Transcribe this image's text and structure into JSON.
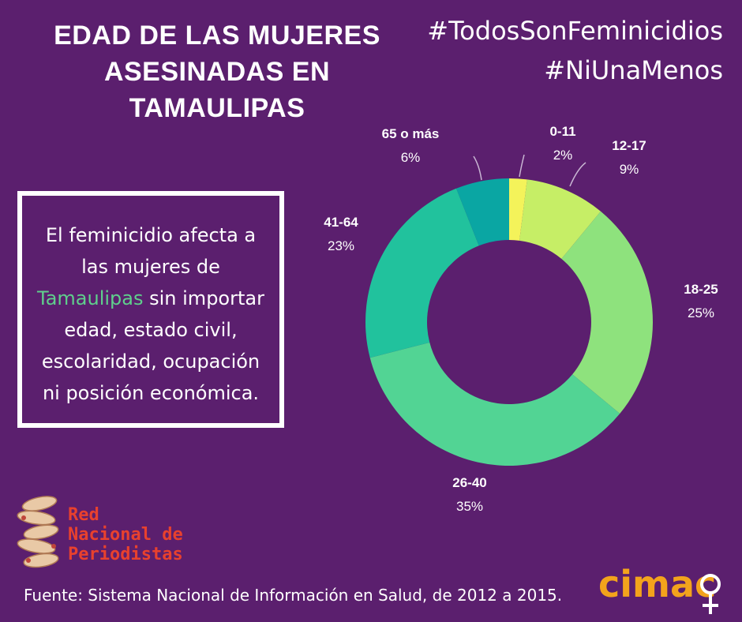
{
  "title": {
    "lines": [
      "EDAD DE LAS MUJERES",
      "ASESINADAS EN",
      "TAMAULIPAS"
    ]
  },
  "hashtags": [
    "#TodosSonFeminicidios",
    "#NiUnaMenos"
  ],
  "info": {
    "line1": "El feminicidio afecta a",
    "line2": "las mujeres de",
    "line3_highlight": "Tamaulipas",
    "line3_rest": " sin importar",
    "line4": "edad, estado civil,",
    "line5": "escolaridad, ocupación",
    "line6": "ni posición económica."
  },
  "chart_data": {
    "type": "pie",
    "donut": true,
    "categories": [
      "0-11",
      "12-17",
      "18-25",
      "26-40",
      "41-64",
      "65 o más"
    ],
    "values": [
      2,
      9,
      25,
      35,
      23,
      6
    ],
    "value_labels": [
      "2%",
      "9%",
      "25%",
      "35%",
      "23%",
      "6%"
    ],
    "colors": [
      "#f4f35a",
      "#c6ee66",
      "#8ee27d",
      "#52d494",
      "#21c29d",
      "#0aa6a3"
    ]
  },
  "logo": {
    "lines": [
      "Red",
      "Nacional de",
      "Periodistas"
    ]
  },
  "source": "Fuente: Sistema Nacional de Información en Salud, de 2012 a 2015.",
  "cimac": {
    "text": "cimac",
    "color": "#f3a31c"
  }
}
